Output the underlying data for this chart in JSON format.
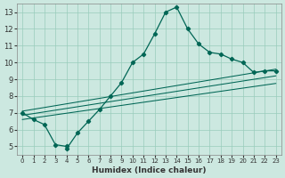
{
  "xlabel": "Humidex (Indice chaleur)",
  "background_color": "#cce8e0",
  "grid_color": "#99ccbb",
  "line_color": "#006655",
  "xlim": [
    -0.5,
    23.5
  ],
  "ylim": [
    4.5,
    13.5
  ],
  "xticks": [
    0,
    1,
    2,
    3,
    4,
    5,
    6,
    7,
    8,
    9,
    10,
    11,
    12,
    13,
    14,
    15,
    16,
    17,
    18,
    19,
    20,
    21,
    22,
    23
  ],
  "yticks": [
    5,
    6,
    7,
    8,
    9,
    10,
    11,
    12,
    13
  ],
  "main_x": [
    0,
    1,
    2,
    3,
    4,
    4,
    5,
    6,
    7,
    8,
    9,
    10,
    11,
    12,
    13,
    14,
    15,
    16,
    17,
    18,
    19,
    20,
    21,
    22,
    23
  ],
  "main_y": [
    7.0,
    6.6,
    6.3,
    5.1,
    5.0,
    4.85,
    5.8,
    6.5,
    7.2,
    8.0,
    8.8,
    10.0,
    10.5,
    11.7,
    13.0,
    13.3,
    12.0,
    11.1,
    10.6,
    10.5,
    10.2,
    10.0,
    9.4,
    9.5,
    9.5
  ],
  "line2_x": [
    0,
    23
  ],
  "line2_y": [
    7.1,
    9.6
  ],
  "line3_x": [
    0,
    23
  ],
  "line3_y": [
    6.85,
    9.2
  ],
  "line4_x": [
    0,
    23
  ],
  "line4_y": [
    6.6,
    8.75
  ]
}
